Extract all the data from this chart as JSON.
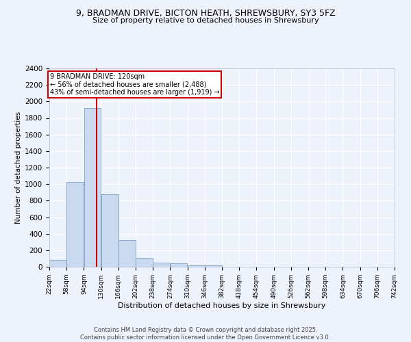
{
  "title_line1": "9, BRADMAN DRIVE, BICTON HEATH, SHREWSBURY, SY3 5FZ",
  "title_line2": "Size of property relative to detached houses in Shrewsbury",
  "xlabel": "Distribution of detached houses by size in Shrewsbury",
  "ylabel": "Number of detached properties",
  "bar_values": [
    80,
    1030,
    1920,
    880,
    320,
    110,
    50,
    45,
    20,
    15,
    0,
    0,
    0,
    0,
    0,
    0,
    0,
    0,
    0,
    0
  ],
  "bin_edges": [
    22,
    58,
    94,
    130,
    166,
    202,
    238,
    274,
    310,
    346,
    382,
    418,
    454,
    490,
    526,
    562,
    598,
    634,
    670,
    706,
    742
  ],
  "bar_color": "#c9d9f0",
  "bar_edge_color": "#7a9ec8",
  "vline_x": 120,
  "vline_color": "#cc0000",
  "annotation_text": "9 BRADMAN DRIVE: 120sqm\n← 56% of detached houses are smaller (2,488)\n43% of semi-detached houses are larger (1,919) →",
  "annotation_box_color": "#ffffff",
  "annotation_box_edge": "#cc0000",
  "ylim": [
    0,
    2400
  ],
  "yticks": [
    0,
    200,
    400,
    600,
    800,
    1000,
    1200,
    1400,
    1600,
    1800,
    2000,
    2200,
    2400
  ],
  "tick_labels": [
    "22sqm",
    "58sqm",
    "94sqm",
    "130sqm",
    "166sqm",
    "202sqm",
    "238sqm",
    "274sqm",
    "310sqm",
    "346sqm",
    "382sqm",
    "418sqm",
    "454sqm",
    "490sqm",
    "526sqm",
    "562sqm",
    "598sqm",
    "634sqm",
    "670sqm",
    "706sqm",
    "742sqm"
  ],
  "bg_color": "#eef2fb",
  "grid_color": "#ffffff",
  "footnote": "Contains HM Land Registry data © Crown copyright and database right 2025.\nContains public sector information licensed under the Open Government Licence v3.0."
}
